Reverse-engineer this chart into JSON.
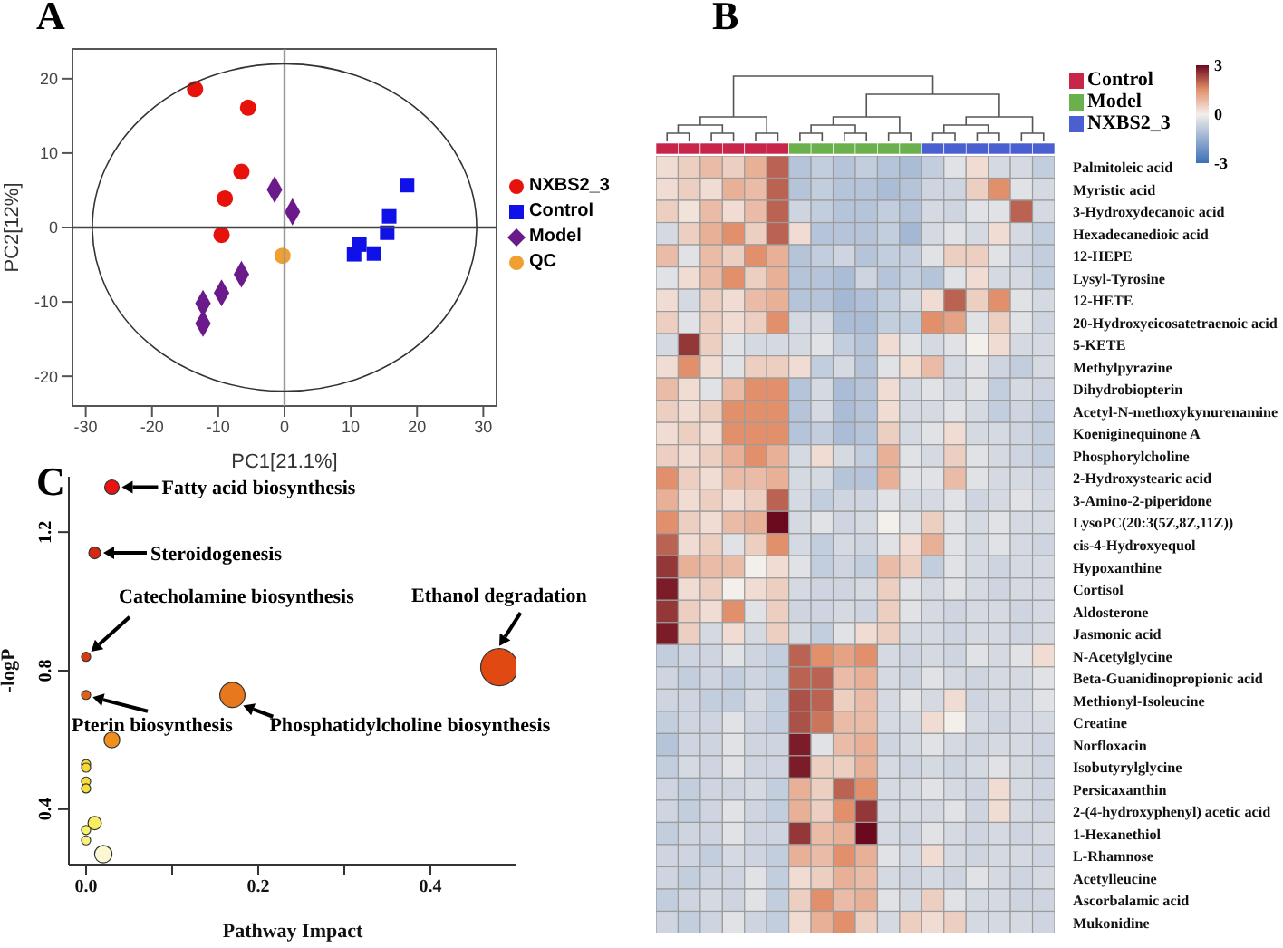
{
  "chart_data": [
    {
      "type": "scatter",
      "title": "A",
      "xlabel": "PC1[21.1%]",
      "ylabel": "PC2[12%]",
      "xlim": [
        -32,
        32
      ],
      "xticks": [
        -30,
        -20,
        -10,
        0,
        10,
        20,
        30
      ],
      "ylim": [
        -24,
        24
      ],
      "yticks": [
        -20,
        -10,
        0,
        10,
        20
      ],
      "legend": "right",
      "ref_lines": [
        {
          "axis": "x",
          "value": 0,
          "color": "#999999"
        },
        {
          "axis": "y",
          "value": 0,
          "color": "#444444"
        }
      ],
      "series": [
        {
          "name": "NXBS2_3",
          "color": "#e8120c",
          "marker": "circle",
          "x": [
            -13.5,
            -5.5,
            -6.5,
            -9,
            -9.5
          ],
          "values": [
            18.6,
            16.1,
            7.5,
            3.9,
            -1
          ]
        },
        {
          "name": "Control",
          "color": "#1010e8",
          "marker": "square",
          "x": [
            10.5,
            11.3,
            13.5,
            15.5,
            15.8,
            18.5
          ],
          "values": [
            -3.6,
            -2.3,
            -3.5,
            -0.7,
            1.5,
            5.7
          ]
        },
        {
          "name": "Model",
          "color": "#6a1a8a",
          "marker": "diamond",
          "x": [
            -1.5,
            1.2,
            -6.5,
            -9.5,
            -12.3,
            -12.3
          ],
          "values": [
            5.1,
            2.1,
            -6.3,
            -8.8,
            -10.2,
            -12.9
          ]
        },
        {
          "name": "QC",
          "color": "#f0a030",
          "marker": "circle",
          "x": [
            -0.3
          ],
          "values": [
            -3.8
          ]
        }
      ]
    },
    {
      "type": "heatmap",
      "title": "B",
      "clim": [
        -3,
        3
      ],
      "cticks": [
        -3,
        0,
        3
      ],
      "categories": [
        null,
        null,
        null,
        null,
        null,
        null,
        null,
        null,
        null,
        null,
        null,
        null,
        null,
        null,
        null,
        null,
        null,
        null
      ],
      "colors": [
        "#c8254b",
        "#c8254b",
        "#c8254b",
        "#c8254b",
        "#c8254b",
        "#c8254b",
        "#6ab04c",
        "#6ab04c",
        "#6ab04c",
        "#6ab04c",
        "#6ab04c",
        "#6ab04c",
        "#4a5fd0",
        "#4a5fd0",
        "#4a5fd0",
        "#4a5fd0",
        "#4a5fd0",
        "#4a5fd0"
      ],
      "y_categories": [
        "Palmitoleic acid",
        "Myristic acid",
        "3-Hydroxydecanoic acid",
        "Hexadecanedioic acid",
        "12-HEPE",
        "Lysyl-Tyrosine",
        "12-HETE",
        "20-Hydroxyeicosatetraenoic acid",
        "5-KETE",
        "Methylpyrazine",
        "Dihydrobiopterin",
        "Acetyl-N-methoxykynurenamine",
        "Koeniginequinone A",
        "Phosphorylcholine",
        "2-Hydroxystearic acid",
        "3-Amino-2-piperidone",
        "LysoPC(20:3(5Z,8Z,11Z))",
        "cis-4-Hydroxyequol",
        "Hypoxanthine",
        "Cortisol",
        "Aldosterone",
        "Jasmonic acid",
        "N-Acetylglycine",
        "Beta-Guanidinopropionic acid",
        "Methionyl-Isoleucine",
        "Creatine",
        "Norfloxacin",
        "Isobutyrylglycine",
        "Persicaxanthin",
        "2-(4-hydroxyphenyl) acetic acid",
        "1-Hexanethiol",
        "L-Rhamnose",
        "Acetylleucine",
        "Ascorbalamic acid",
        "Mukonidine"
      ],
      "cells": [
        [
          0.3,
          0.5,
          0.8,
          0.5,
          1,
          2,
          -1,
          -0.8,
          -1,
          -0.8,
          -1,
          -1.2,
          -0.8,
          -0.3,
          0.3,
          -0.5,
          -0.5,
          -0.8
        ],
        [
          0.3,
          0.5,
          0.3,
          1,
          0.8,
          2,
          -1,
          -0.8,
          -1,
          -1,
          -1.2,
          -1,
          -0.6,
          -0.6,
          0.5,
          1.5,
          -0.3,
          -0.5
        ],
        [
          0.5,
          0.2,
          0.8,
          0.3,
          0.8,
          2,
          -0.6,
          -0.8,
          -1,
          -1,
          -0.8,
          -1,
          -0.5,
          -0.6,
          -0.3,
          -0.3,
          2,
          -0.5
        ],
        [
          -0.5,
          0.5,
          1,
          1.5,
          0.5,
          2,
          0.3,
          -1,
          -1,
          -1,
          -0.8,
          -1.3,
          -0.5,
          -0.3,
          -0.5,
          0.3,
          -0.5,
          -0.8
        ],
        [
          0.8,
          -0.3,
          0.8,
          0.5,
          1.5,
          1,
          -1,
          -0.8,
          -0.6,
          -1,
          -0.8,
          -0.8,
          -0.3,
          0.5,
          0.5,
          -0.3,
          -0.6,
          -0.8
        ],
        [
          -0.3,
          0.3,
          0.8,
          1.5,
          0.5,
          1,
          -1,
          -1,
          -1.2,
          -0.6,
          -1,
          -0.8,
          -1,
          -0.3,
          0.3,
          -0.5,
          -0.5,
          -0.8
        ],
        [
          0.3,
          -0.5,
          0.5,
          0.3,
          0.8,
          1,
          -1,
          -1,
          -1.3,
          -1.1,
          -0.8,
          -0.5,
          0.3,
          2,
          0.5,
          1.5,
          -0.3,
          -0.5
        ],
        [
          0.5,
          -0.3,
          0.5,
          0.3,
          0.5,
          1.5,
          -0.5,
          -0.5,
          -1.2,
          -1.2,
          -0.8,
          -0.8,
          1.5,
          1.2,
          -0.3,
          0.5,
          -0.3,
          -0.6
        ],
        [
          -0.5,
          2.5,
          0.5,
          -0.3,
          -0.5,
          -0.5,
          -0.5,
          -0.3,
          -0.8,
          -1,
          0.3,
          -0.3,
          -0.5,
          -0.3,
          0,
          0.3,
          -0.5,
          -0.5
        ],
        [
          0.3,
          1.5,
          0.3,
          -0.3,
          0.5,
          0.5,
          0.3,
          -0.8,
          -0.5,
          -1,
          -0.3,
          0.3,
          0.8,
          -0.5,
          -0.3,
          -0.6,
          -0.8,
          -0.5
        ],
        [
          0.8,
          0.3,
          -0.3,
          0.8,
          1.5,
          1.5,
          -1,
          -0.5,
          -1.2,
          -1,
          0.3,
          -0.5,
          -0.3,
          -0.5,
          -0.3,
          -0.8,
          -0.5,
          -0.6
        ],
        [
          0.5,
          0.3,
          0.5,
          1.5,
          1.5,
          1.5,
          -1,
          -0.5,
          -1.2,
          -1,
          0.3,
          -0.5,
          -0.5,
          -0.3,
          -0.5,
          -0.8,
          -0.6,
          -0.8
        ],
        [
          0.3,
          0.5,
          0.3,
          1.5,
          1.5,
          1.5,
          -1,
          -0.8,
          -1.2,
          -1,
          0.5,
          -0.5,
          -0.3,
          0.3,
          -0.5,
          -0.5,
          -0.6,
          -0.8
        ],
        [
          0.5,
          0.3,
          0.5,
          1,
          1.5,
          1,
          -0.5,
          0.3,
          -0.5,
          -0.8,
          1,
          -0.3,
          -0.5,
          0.5,
          -0.3,
          -0.5,
          -0.6,
          -0.8
        ],
        [
          1.5,
          0.5,
          0.3,
          0.8,
          0.8,
          1,
          -0.5,
          -0.5,
          -1,
          -1,
          1,
          -0.3,
          -0.3,
          0.8,
          -0.3,
          -0.5,
          -0.5,
          -0.6
        ],
        [
          1,
          0.3,
          0.5,
          0.3,
          0.5,
          2,
          -0.5,
          -0.8,
          -0.6,
          -0.6,
          -0.3,
          -0.5,
          -0.5,
          -0.3,
          -0.6,
          -0.5,
          -0.3,
          -0.5
        ],
        [
          1.5,
          0.5,
          0.3,
          0.8,
          1,
          3,
          -0.5,
          -0.3,
          -0.6,
          -0.5,
          0,
          -0.3,
          0.5,
          -0.3,
          -0.5,
          -0.3,
          -0.5,
          -0.5
        ],
        [
          2,
          0.3,
          0.5,
          -0.3,
          0.5,
          1.5,
          -0.5,
          -0.8,
          -0.5,
          -0.6,
          -0.3,
          0.3,
          1,
          -0.3,
          -0.5,
          -0.3,
          -0.5,
          -0.6
        ],
        [
          2.5,
          1,
          0.8,
          0.8,
          0,
          0.3,
          -0.3,
          -0.8,
          -0.6,
          -0.8,
          0.8,
          0.5,
          -0.8,
          -0.3,
          -0.5,
          -0.6,
          -0.5,
          -0.5
        ],
        [
          2.8,
          0.3,
          0.5,
          0,
          0.3,
          0.5,
          -0.5,
          -0.6,
          -0.6,
          -0.5,
          0.5,
          -0.3,
          -0.5,
          -0.3,
          -0.5,
          -0.6,
          -0.5,
          -0.5
        ],
        [
          2.5,
          0.5,
          0.3,
          1.5,
          -0.3,
          0.5,
          -0.6,
          -0.6,
          -0.5,
          -0.6,
          0.5,
          -0.3,
          -0.5,
          -0.6,
          -0.5,
          -0.5,
          -0.6,
          -0.5
        ],
        [
          2.8,
          0.5,
          -0.5,
          0.3,
          -0.5,
          0.5,
          -0.5,
          -0.8,
          -0.3,
          0.3,
          0.5,
          -0.5,
          -0.5,
          -0.6,
          -0.5,
          -0.5,
          -0.6,
          -0.5
        ],
        [
          -0.8,
          -0.6,
          -0.6,
          -0.3,
          -0.6,
          -0.8,
          2,
          1.5,
          1.2,
          1.5,
          -0.5,
          -0.6,
          -0.5,
          -0.6,
          -0.3,
          -0.5,
          -0.3,
          0.3
        ],
        [
          -0.6,
          -0.8,
          -0.6,
          -0.8,
          -0.6,
          -0.8,
          2,
          2,
          0.8,
          1,
          -0.5,
          -0.6,
          -0.3,
          -0.5,
          -0.6,
          -0.5,
          -0.5,
          -0.3
        ],
        [
          -0.6,
          -0.6,
          -0.8,
          -0.8,
          -0.5,
          -0.8,
          2.2,
          2,
          0.5,
          0.8,
          -0.5,
          -0.3,
          -0.5,
          0.3,
          -0.6,
          -0.5,
          -0.5,
          -0.3
        ],
        [
          -0.8,
          -0.6,
          -0.6,
          -0.3,
          -0.6,
          -0.8,
          2.2,
          1.8,
          0.8,
          0.8,
          -0.5,
          -0.5,
          0.3,
          0,
          -0.5,
          -0.6,
          -0.5,
          -0.5
        ],
        [
          -1,
          -0.6,
          -0.6,
          -0.3,
          -0.6,
          -0.6,
          2.8,
          -0.3,
          0.8,
          1,
          -0.6,
          -0.5,
          -0.3,
          -0.5,
          -0.6,
          -0.5,
          -0.5,
          -0.6
        ],
        [
          -0.8,
          -0.5,
          -0.6,
          -0.3,
          -0.6,
          -0.6,
          2.8,
          0.5,
          0.5,
          1,
          -0.5,
          -0.6,
          -0.5,
          -0.6,
          -0.5,
          -0.3,
          -0.5,
          -0.6
        ],
        [
          -0.6,
          -0.8,
          -0.6,
          -0.6,
          -0.5,
          -0.8,
          1,
          0.5,
          2,
          1.5,
          -0.5,
          -0.5,
          -0.3,
          -0.5,
          -0.6,
          0.3,
          -0.5,
          -0.6
        ],
        [
          -0.6,
          -0.8,
          -0.6,
          -0.3,
          -0.6,
          -0.8,
          1,
          0.5,
          1.5,
          2.5,
          -0.5,
          -0.5,
          -0.5,
          -0.3,
          -0.6,
          0.3,
          -0.5,
          -0.6
        ],
        [
          -0.8,
          -0.6,
          -0.6,
          -0.3,
          -0.6,
          -0.6,
          2.5,
          0.8,
          1,
          3,
          -0.5,
          -0.6,
          -0.3,
          -0.5,
          -0.6,
          -0.5,
          -0.6,
          -0.5
        ],
        [
          -0.6,
          -0.6,
          -0.8,
          -0.5,
          -0.6,
          -0.8,
          1,
          0.8,
          1.5,
          1,
          -0.3,
          -0.5,
          0.3,
          -0.5,
          -0.6,
          -0.5,
          -0.5,
          -0.6
        ],
        [
          -0.6,
          -0.8,
          -0.6,
          -0.6,
          -0.3,
          -0.8,
          0.3,
          0.5,
          1,
          0.8,
          -0.5,
          -0.6,
          -0.5,
          -0.6,
          -0.3,
          -0.5,
          -0.6,
          -0.5
        ],
        [
          -0.8,
          -0.6,
          -0.5,
          -0.6,
          -0.3,
          -0.8,
          0.5,
          1.5,
          0.8,
          1,
          -0.3,
          -0.5,
          0.5,
          -0.3,
          -0.5,
          -0.5,
          -0.6,
          -0.6
        ],
        [
          -0.6,
          -0.8,
          -0.6,
          -0.3,
          -0.6,
          -0.8,
          0.3,
          1,
          1.5,
          0.5,
          -0.5,
          0.5,
          0.3,
          0.5,
          -0.5,
          -0.5,
          -0.5,
          -0.6
        ]
      ]
    },
    {
      "type": "other",
      "categories": [
        "Control",
        "Model",
        "NXBS2_3"
      ],
      "colors": [
        "#c8254b",
        "#6ab04c",
        "#4a5fd0"
      ]
    },
    {
      "type": "bubble",
      "title": "C",
      "xlabel": "Pathway Impact",
      "ylabel": "-logP",
      "xlim": [
        -0.02,
        0.5
      ],
      "xticks": [
        {
          "value": 0,
          "label": "0.0"
        },
        {
          "value": 0.1,
          "label": null
        },
        {
          "value": 0.2,
          "label": "0.2"
        },
        {
          "value": 0.3,
          "label": null
        },
        {
          "value": 0.4,
          "label": "0.4"
        }
      ],
      "ylim": [
        0.24,
        1.36
      ],
      "yticks": [
        0.4,
        0.8,
        1.2
      ],
      "x": [
        0.03,
        0.01,
        0,
        0,
        0.17,
        0.48,
        0.03,
        0,
        0,
        0,
        0,
        0.01,
        0,
        0,
        0.02
      ],
      "values": [
        1.33,
        1.14,
        0.84,
        0.73,
        0.73,
        0.81,
        0.6,
        0.53,
        0.52,
        0.48,
        0.46,
        0.36,
        0.34,
        0.31,
        0.27
      ],
      "sizes": [
        0.15,
        0.1,
        0.06,
        0.06,
        0.46,
        1,
        0.18,
        0.06,
        0.06,
        0.06,
        0.06,
        0.13,
        0.06,
        0.06,
        0.22
      ],
      "colors": [
        "#e8140f",
        "#d42a10",
        "#d63a10",
        "#e0601a",
        "#e8781e",
        "#e04a12",
        "#f0901c",
        "#f5d83a",
        "#f5d83a",
        "#f5dc40",
        "#f5dc40",
        "#f8ec60",
        "#f8f070",
        "#f8f080",
        "#fbf7d0"
      ],
      "annotations": [
        {
          "text": "Fatty acid biosynthesis",
          "x": 0.03,
          "y": 1.33
        },
        {
          "text": "Steroidogenesis",
          "x": 0.01,
          "y": 1.14
        },
        {
          "text": "Catecholamine biosynthesis",
          "x": 0,
          "y": 0.84
        },
        {
          "text": "Pterin biosynthesis",
          "x": 0,
          "y": 0.73
        },
        {
          "text": "Phosphatidylcholine biosynthesis",
          "x": 0.17,
          "y": 0.73
        },
        {
          "text": "Ethanol degradation",
          "x": 0.48,
          "y": 0.81
        }
      ]
    }
  ]
}
